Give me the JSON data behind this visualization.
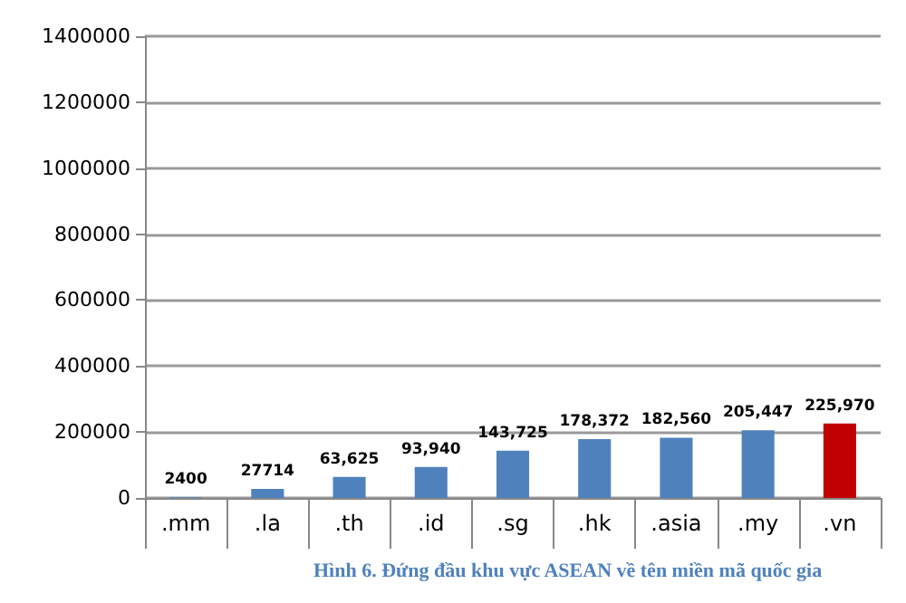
{
  "chart_data": {
    "type": "bar",
    "categories": [
      ".mm",
      ".la",
      ".th",
      ".id",
      ".sg",
      ".hk",
      ".asia",
      ".my",
      ".vn"
    ],
    "values": [
      2400,
      27714,
      63625,
      93940,
      143725,
      178372,
      182560,
      205447,
      225970
    ],
    "colors": [
      "#4f81bd",
      "#4f81bd",
      "#4f81bd",
      "#4f81bd",
      "#4f81bd",
      "#4f81bd",
      "#4f81bd",
      "#4f81bd",
      "#c00000"
    ],
    "value_labels": [
      "2400",
      "27714",
      "63,625",
      "93,940",
      "143,725",
      "178,372",
      "182,560",
      "205,447",
      "225,970"
    ],
    "ylim": [
      0,
      1400000
    ],
    "yticks": [
      0,
      200000,
      400000,
      600000,
      800000,
      1000000,
      1200000,
      1400000
    ],
    "grid": "y",
    "annotations": [
      "Hình 6. Đứng đầu khu vực ASEAN về tên miền mã quốc gia"
    ]
  }
}
